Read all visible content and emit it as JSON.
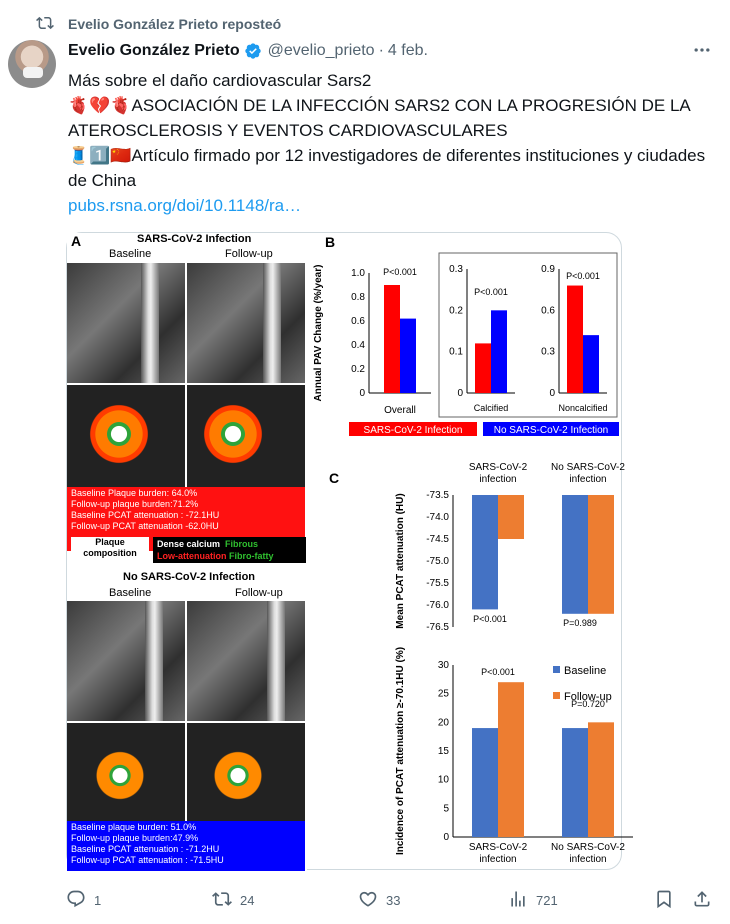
{
  "repost": {
    "text": "Evelio González Prieto reposteó"
  },
  "author": {
    "name": "Evelio González Prieto",
    "handle": "@evelio_prieto",
    "separator": "·",
    "date": "4 feb."
  },
  "post": {
    "line1": "Más sobre el daño cardiovascular Sars2",
    "line2_emoji": "🫀💔🫀",
    "line2_text": "ASOCIACIÓN DE LA INFECCIÓN SARS2 CON LA PROGRESIÓN DE LA ATEROSCLEROSIS Y EVENTOS CARDIOVASCULARES",
    "line3_emoji": "🧵1️⃣🇨🇳",
    "line3_text": "Artículo firmado por 12 investigadores de diferentes instituciones y ciudades de China",
    "link": "pubs.rsna.org/doi/10.1148/ra…"
  },
  "figure": {
    "panelA": {
      "tag": "A",
      "title_infected": "SARS-CoV-2 Infection",
      "baseline": "Baseline",
      "followup": "Follow-up",
      "red_lines": [
        "Baseline Plaque burden: 64.0%",
        "Follow-up plaque burden:71.2%",
        "Baseline  PCAT attenuation : -72.1HU",
        "Follow-up PCAT attenuation   -62.0HU"
      ],
      "plaque_composition": "Plaque composition",
      "legend_dense": "Dense calcium",
      "legend_fibrous": "Fibrous",
      "legend_low": "Low-attenuation",
      "legend_fibrofatty": "Fibro-fatty",
      "title_noninfected": "No SARS-CoV-2 Infection",
      "blue_lines": [
        "Baseline plaque burden: 51.0%",
        "Follow-up plaque burden:47.9%",
        "Baseline PCAT attenuation : -71.2HU",
        "Follow-up PCAT attenuation : -71.5HU"
      ]
    },
    "panelB_tag": "B",
    "panelC_tag": "C",
    "legend_infected": "SARS-CoV-2 Infection",
    "legend_noninfected": "No SARS-CoV-2 Infection",
    "legend_baseline": "Baseline",
    "legend_followup": "Follow-up"
  },
  "chart_data": [
    {
      "type": "bar",
      "ylabel": "Annual PAV Change (%/year)",
      "categories": [
        "Overall"
      ],
      "ylim": [
        0,
        1.0
      ],
      "yticks": [
        "0",
        "0.2",
        "0.4",
        "0.6",
        "0.8",
        "1.0"
      ],
      "series": [
        {
          "name": "SARS-CoV-2 Infection",
          "values": [
            0.9
          ]
        },
        {
          "name": "No SARS-CoV-2 Infection",
          "values": [
            0.62
          ]
        }
      ],
      "annotation": "P<0.001"
    },
    {
      "type": "bar",
      "categories": [
        "Calcified"
      ],
      "ylim": [
        0,
        0.3
      ],
      "yticks": [
        "0",
        "0.1",
        "0.2",
        "0.3"
      ],
      "series": [
        {
          "name": "SARS-CoV-2 Infection",
          "values": [
            0.12
          ]
        },
        {
          "name": "No SARS-CoV-2 Infection",
          "values": [
            0.2
          ]
        }
      ],
      "annotation": "P<0.001"
    },
    {
      "type": "bar",
      "categories": [
        "Noncalcified"
      ],
      "ylim": [
        0,
        0.9
      ],
      "yticks": [
        "0",
        "0.3",
        "0.6",
        "0.9"
      ],
      "series": [
        {
          "name": "SARS-CoV-2 Infection",
          "values": [
            0.78
          ]
        },
        {
          "name": "No SARS-CoV-2 Infection",
          "values": [
            0.42
          ]
        }
      ],
      "annotation": "P<0.001"
    },
    {
      "type": "bar",
      "ylabel": "Mean PCAT attenuation (HU)",
      "categories": [
        "SARS-CoV-2 infection",
        "No SARS-CoV-2 infection"
      ],
      "ylim": [
        -76.5,
        -73.5
      ],
      "yticks": [
        "-73.5",
        "-74.0",
        "-74.5",
        "-75.0",
        "-75.5",
        "-76.0",
        "-76.5"
      ],
      "series": [
        {
          "name": "Baseline",
          "values": [
            -76.1,
            -76.2
          ]
        },
        {
          "name": "Follow-up",
          "values": [
            -74.5,
            -76.2
          ]
        }
      ],
      "annotations": [
        "P<0.001",
        "P=0.989"
      ]
    },
    {
      "type": "bar",
      "ylabel": "Incidence of PCAT attenuation ≥-70.1HU (%)",
      "categories": [
        "SARS-CoV-2 infection",
        "No SARS-CoV-2 infection"
      ],
      "ylim": [
        0,
        30
      ],
      "yticks": [
        "0",
        "5",
        "10",
        "15",
        "20",
        "25",
        "30"
      ],
      "series": [
        {
          "name": "Baseline",
          "values": [
            19,
            19
          ]
        },
        {
          "name": "Follow-up",
          "values": [
            27,
            20
          ]
        }
      ],
      "annotations": [
        "P<0.001",
        "P=0.720"
      ]
    }
  ],
  "actions": {
    "replies": "1",
    "reposts": "24",
    "likes": "33",
    "views": "721"
  },
  "colors": {
    "red": "#ff0000",
    "blue": "#0000ff",
    "baseline": "#4472c4",
    "followup": "#ed7d31",
    "link": "#1d9bf0"
  }
}
